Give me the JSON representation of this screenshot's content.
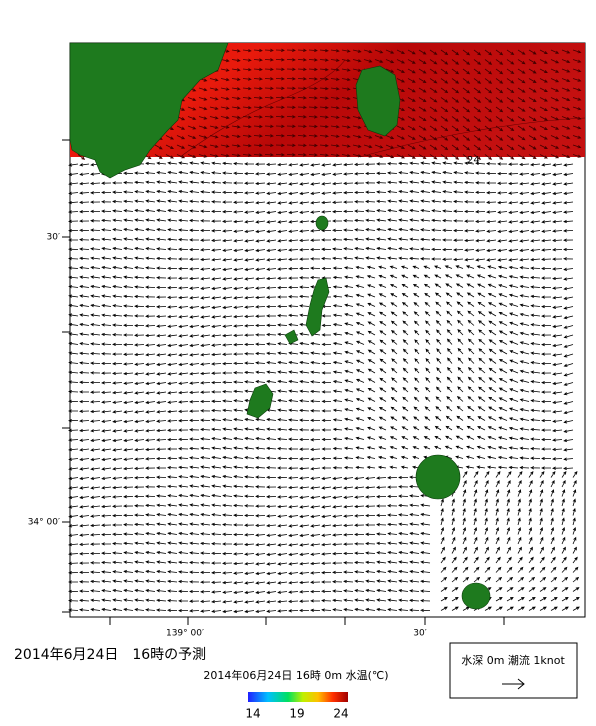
{
  "map": {
    "title": "2014年6月24日　16時の予測",
    "lat_labels": [
      "30′",
      "34° 00′"
    ],
    "lon_labels": [
      "139° 00′",
      "30′"
    ],
    "contour_label": "24",
    "colorbar": {
      "caption": "2014年06月24日 16時 0m 水温(℃)",
      "ticks": [
        14,
        19,
        24
      ]
    },
    "legend": "水深 0m 潮流 1knot"
  }
}
